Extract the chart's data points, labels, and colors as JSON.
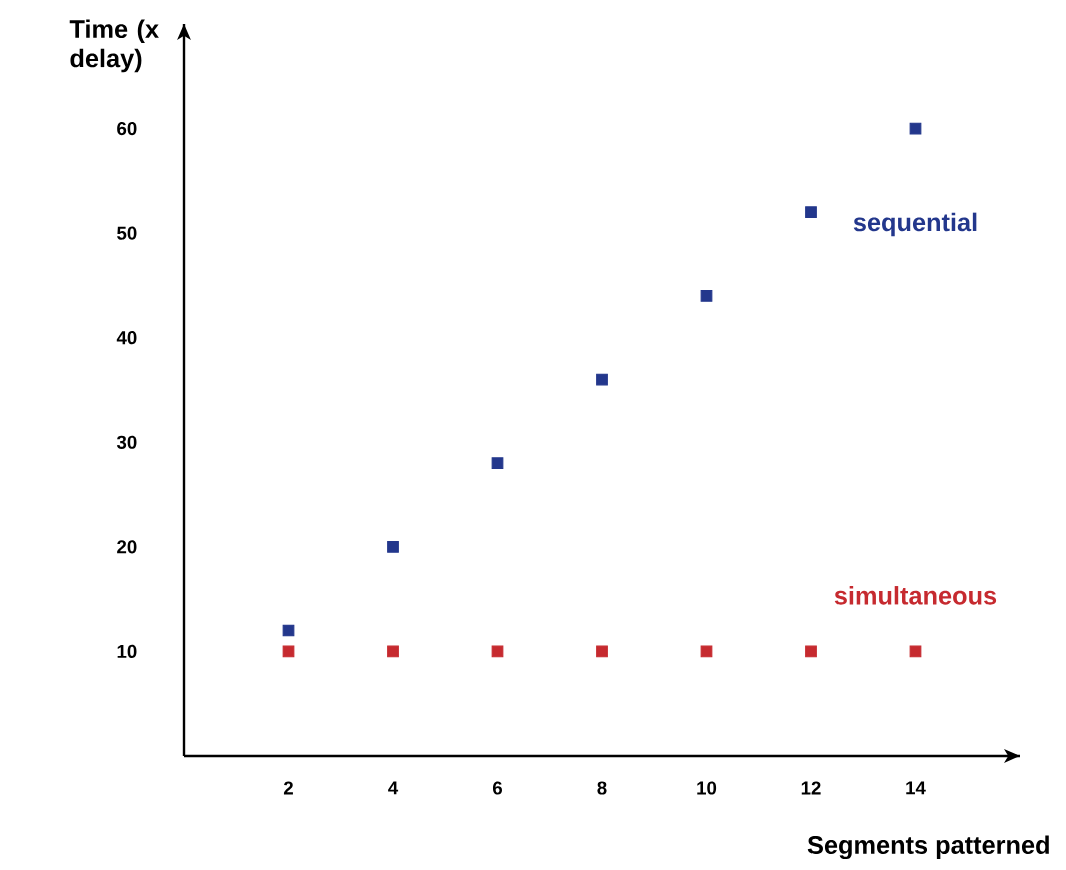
{
  "chart_data": {
    "type": "scatter",
    "xlabel": "Segments patterned",
    "ylabel": "Time (x delay)",
    "x": [
      2,
      4,
      6,
      8,
      10,
      12,
      14
    ],
    "series": [
      {
        "name": "sequential",
        "color": "#23378c",
        "values": [
          12,
          20,
          28,
          36,
          44,
          52,
          60
        ]
      },
      {
        "name": "simultaneous",
        "color": "#c62a2f",
        "values": [
          10,
          10,
          10,
          10,
          10,
          10,
          10
        ]
      }
    ],
    "xlim": [
      0,
      16
    ],
    "ylim": [
      0,
      70
    ],
    "xticks": [
      2,
      4,
      6,
      8,
      10,
      12,
      14
    ],
    "yticks": [
      10,
      20,
      30,
      40,
      50,
      60
    ],
    "marker": "square",
    "grid": false
  }
}
